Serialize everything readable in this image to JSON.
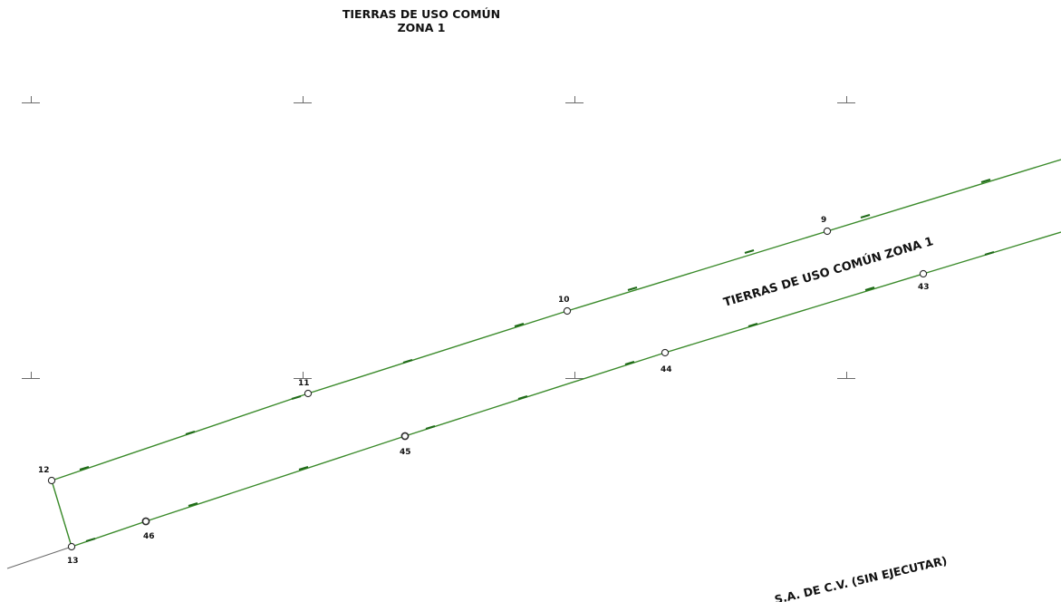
{
  "title": {
    "line1": "TIERRAS DE USO COMÚN",
    "line2": "ZONA 1"
  },
  "zone_label": "TIERRAS DE USO COMÚN ZONA 1",
  "bottom_label": "S.A. DE C.V. (SIN EJECUTAR)",
  "vertices": {
    "v9": "9",
    "v10": "10",
    "v11": "11",
    "v12": "12",
    "v13": "13",
    "v43": "43",
    "v44": "44",
    "v45": "45",
    "v46": "46"
  },
  "colors": {
    "boundary": "#3a8a2a",
    "boundary_dark": "#1f6a18",
    "outline": "#6a6a6a",
    "text": "#111111",
    "grid_tick": "#6a6a6a"
  }
}
